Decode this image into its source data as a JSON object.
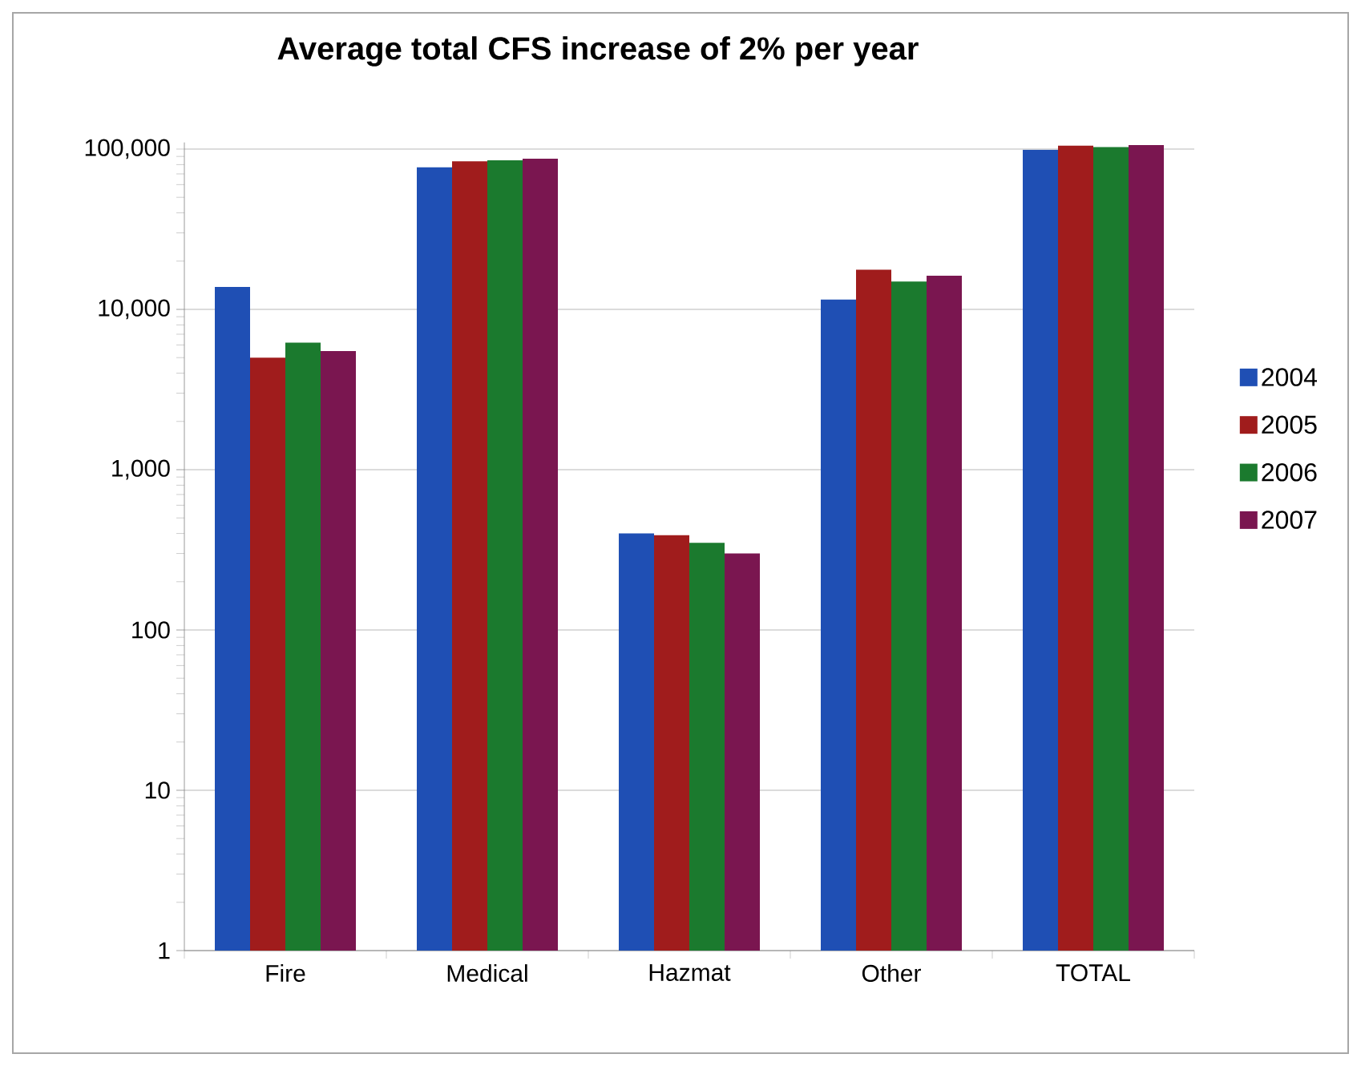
{
  "chart_data": {
    "type": "bar",
    "title": "Average total CFS increase of 2% per year",
    "categories": [
      "Fire",
      "Medical",
      "Hazmat",
      "Other",
      "TOTAL"
    ],
    "series": [
      {
        "name": "2004",
        "color": "#1f4fb4",
        "values": [
          13800,
          77000,
          400,
          11500,
          99000
        ]
      },
      {
        "name": "2005",
        "color": "#a01c1c",
        "values": [
          5000,
          84000,
          390,
          17700,
          105000
        ]
      },
      {
        "name": "2006",
        "color": "#1b7a2e",
        "values": [
          6200,
          85000,
          350,
          14900,
          103000
        ]
      },
      {
        "name": "2007",
        "color": "#7a1650",
        "values": [
          5500,
          87000,
          300,
          16200,
          106000
        ]
      }
    ],
    "log": "y",
    "ylim": [
      1,
      110000
    ],
    "yticks": [
      {
        "value": 1,
        "label": "1"
      },
      {
        "value": 10,
        "label": "10"
      },
      {
        "value": 100,
        "label": "100"
      },
      {
        "value": 1000,
        "label": "1,000"
      },
      {
        "value": 10000,
        "label": "10,000"
      },
      {
        "value": 100000,
        "label": "100,000"
      }
    ],
    "grid": "y",
    "legend": "right"
  }
}
